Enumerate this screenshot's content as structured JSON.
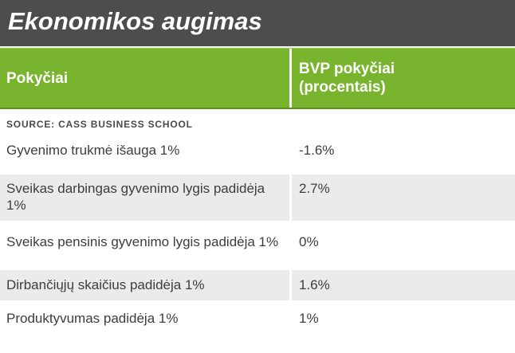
{
  "title": "Ekonomikos augimas",
  "table": {
    "columns": {
      "left": "Pokyčiai",
      "right": "BVP pokyčiai\n(procentais)"
    },
    "source": "SOURCE: CASS BUSINESS SCHOOL",
    "rows": [
      {
        "label": "Gyvenimo trukmė išauga 1%",
        "value": "-1.6%"
      },
      {
        "label": "Sveikas darbingas gyvenimo lygis padidėja 1%",
        "value": "2.7%"
      },
      {
        "label": "Sveikas pensinis gyvenimo lygis padidėja 1%",
        "value": "0%"
      },
      {
        "label": "Dirbančiųjų skaičius padidėja 1%",
        "value": "1.6%"
      },
      {
        "label": "Produktyvumas padidėja 1%",
        "value": "1%"
      }
    ]
  },
  "chart_data": {
    "type": "table",
    "title": "Ekonomikos augimas",
    "source": "SOURCE: CASS BUSINESS SCHOOL",
    "columns": [
      "Pokyčiai",
      "BVP pokyčiai (procentais)"
    ],
    "categories": [
      "Gyvenimo trukmė išauga 1%",
      "Sveikas darbingas gyvenimo lygis padidėja 1%",
      "Sveikas pensinis gyvenimo lygis padidėja 1%",
      "Dirbančiųjų skaičius padidėja 1%",
      "Produktyvumas padidėja 1%"
    ],
    "values": [
      -1.6,
      2.7,
      0,
      1.6,
      1
    ],
    "value_labels": [
      "-1.6%",
      "2.7%",
      "0%",
      "1.6%",
      "1%"
    ]
  },
  "colors": {
    "title_bar_bg": "#4d4d4d",
    "title_text": "#ffffff",
    "header_green": "#78b42d",
    "header_green_border": "#5d9117",
    "row_stripe_gray": "#ebebeb",
    "body_text": "#3d3d3d"
  }
}
